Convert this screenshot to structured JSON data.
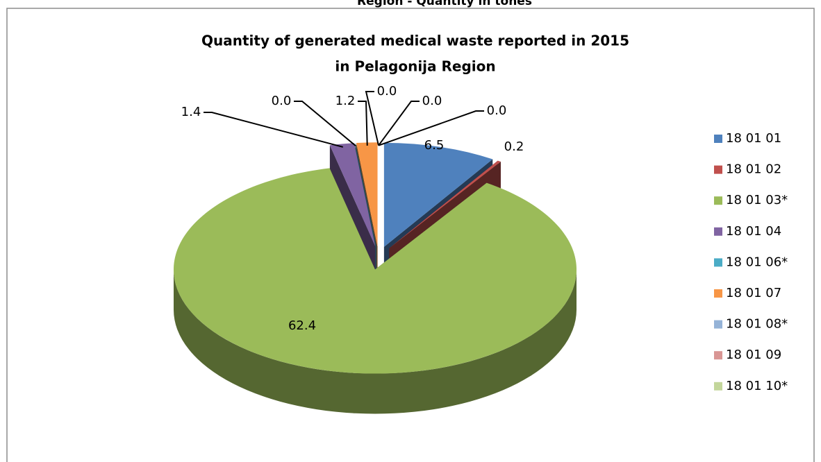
{
  "caption": "Region - Quantity in tones",
  "chart_data": {
    "type": "pie3d",
    "title": [
      "Quantity of generated medical waste reported in 2015",
      "in Pelagonija Region"
    ],
    "categories": [
      "18 01 01",
      "18 01 02",
      "18 01 03*",
      "18 01 04",
      "18 01 06*",
      "18 01 07",
      "18 01 08*",
      "18 01 09",
      "18 01 10*"
    ],
    "values": [
      6.5,
      0.2,
      62.4,
      1.4,
      0.0,
      1.2,
      0.0,
      0.0,
      0.0
    ],
    "value_labels": [
      "6.5",
      "0.2",
      "62.4",
      "1.4",
      "0.0",
      "1.2",
      "0.0",
      "0.0",
      "0.0"
    ],
    "colors": [
      "#4f81bd",
      "#c0504d",
      "#9bbb59",
      "#8064a2",
      "#4bacc6",
      "#f79646",
      "#95b3d7",
      "#d99694",
      "#c3d69b"
    ],
    "legend": "right"
  }
}
